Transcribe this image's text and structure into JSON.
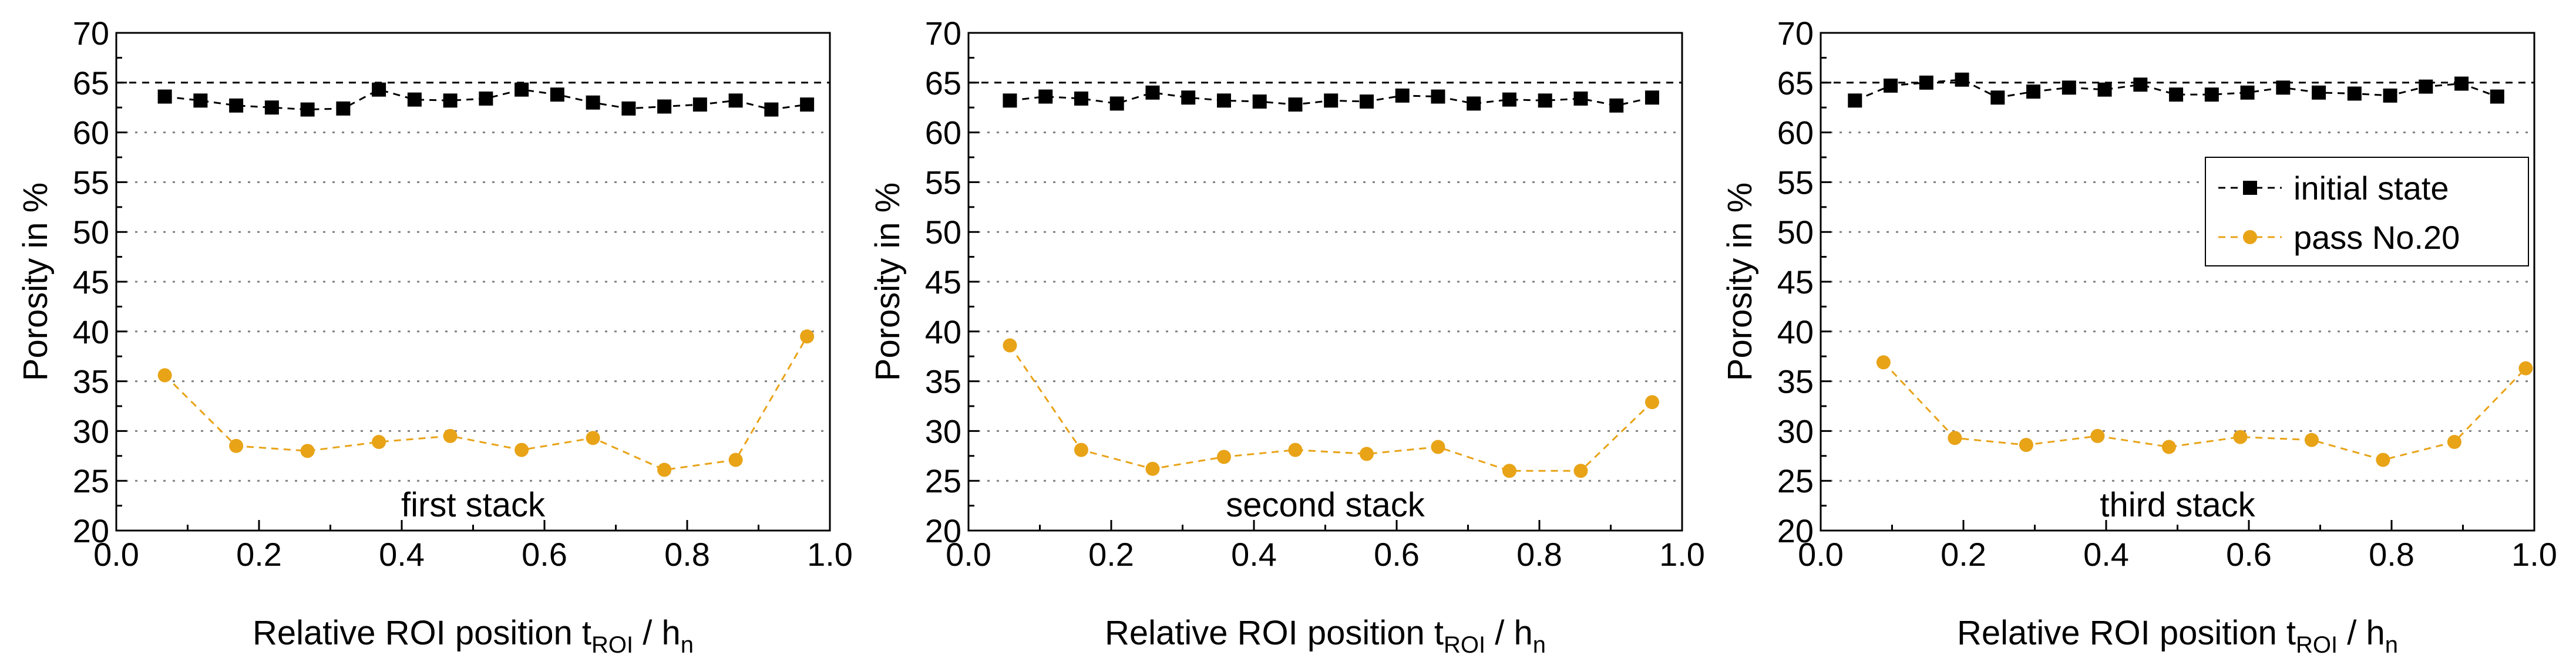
{
  "chart_data": [
    {
      "type": "line",
      "annotation": "first stack",
      "xlabel": "Relative ROI position",
      "xlabel_sub": "ROI",
      "xlabel_tail": " / h",
      "xlabel_tail_sub": "n",
      "ylabel": "Porosity in %",
      "xlim": [
        0.0,
        1.0
      ],
      "ylim": [
        20,
        70
      ],
      "xticks": [
        "0.0",
        "0.2",
        "0.4",
        "0.6",
        "0.8",
        "1.0"
      ],
      "yticks": [
        "20",
        "25",
        "30",
        "35",
        "40",
        "45",
        "50",
        "55",
        "60",
        "65",
        "70"
      ],
      "grid": "horizontal dotted",
      "reference_line": 65,
      "series": [
        {
          "name": "initial state",
          "color": "#000000",
          "marker": "square",
          "x": [
            0.068,
            0.118,
            0.168,
            0.218,
            0.268,
            0.318,
            0.368,
            0.418,
            0.468,
            0.518,
            0.568,
            0.618,
            0.668,
            0.718,
            0.768,
            0.818,
            0.868,
            0.918,
            0.968
          ],
          "y": [
            63.6,
            63.2,
            62.7,
            62.5,
            62.3,
            62.4,
            64.3,
            63.3,
            63.2,
            63.4,
            64.3,
            63.8,
            63.0,
            62.4,
            62.6,
            62.8,
            63.2,
            62.3,
            62.8
          ]
        },
        {
          "name": "pass No.20",
          "color": "#E8A317",
          "marker": "circle",
          "x": [
            0.068,
            0.168,
            0.268,
            0.368,
            0.468,
            0.568,
            0.668,
            0.768,
            0.868,
            0.968
          ],
          "y": [
            35.6,
            28.5,
            28.0,
            28.9,
            29.5,
            28.1,
            29.3,
            26.1,
            27.1,
            39.5
          ]
        }
      ]
    },
    {
      "type": "line",
      "annotation": "second stack",
      "xlabel": "Relative ROI position",
      "xlabel_sub": "ROI",
      "xlabel_tail": " / h",
      "xlabel_tail_sub": "n",
      "ylabel": "Porosity in %",
      "xlim": [
        0.0,
        1.0
      ],
      "ylim": [
        20,
        70
      ],
      "xticks": [
        "0.0",
        "0.2",
        "0.4",
        "0.6",
        "0.8",
        "1.0"
      ],
      "yticks": [
        "20",
        "25",
        "30",
        "35",
        "40",
        "45",
        "50",
        "55",
        "60",
        "65",
        "70"
      ],
      "grid": "horizontal dotted",
      "reference_line": 65,
      "series": [
        {
          "name": "initial state",
          "color": "#000000",
          "marker": "square",
          "x": [
            0.058,
            0.108,
            0.158,
            0.208,
            0.258,
            0.308,
            0.358,
            0.408,
            0.458,
            0.508,
            0.558,
            0.608,
            0.658,
            0.708,
            0.758,
            0.808,
            0.858,
            0.908,
            0.958
          ],
          "y": [
            63.2,
            63.6,
            63.4,
            62.9,
            64.0,
            63.5,
            63.2,
            63.1,
            62.8,
            63.2,
            63.1,
            63.7,
            63.6,
            62.9,
            63.3,
            63.2,
            63.4,
            62.7,
            63.5
          ]
        },
        {
          "name": "pass No.20",
          "color": "#E8A317",
          "marker": "circle",
          "x": [
            0.058,
            0.158,
            0.258,
            0.358,
            0.458,
            0.558,
            0.658,
            0.758,
            0.858,
            0.958
          ],
          "y": [
            38.6,
            28.1,
            26.2,
            27.4,
            28.1,
            27.7,
            28.4,
            26.0,
            26.0,
            32.9
          ]
        }
      ]
    },
    {
      "type": "line",
      "annotation": "third stack",
      "xlabel": "Relative ROI position",
      "xlabel_sub": "ROI",
      "xlabel_tail": " / h",
      "xlabel_tail_sub": "n",
      "ylabel": "Porosity in %",
      "xlim": [
        0.0,
        1.0
      ],
      "ylim": [
        20,
        70
      ],
      "xticks": [
        "0.0",
        "0.2",
        "0.4",
        "0.6",
        "0.8",
        "1.0"
      ],
      "yticks": [
        "20",
        "25",
        "30",
        "35",
        "40",
        "45",
        "50",
        "55",
        "60",
        "65",
        "70"
      ],
      "grid": "horizontal dotted",
      "reference_line": 65,
      "legend": "right-upper",
      "series": [
        {
          "name": "initial state",
          "color": "#000000",
          "marker": "square",
          "x": [
            0.048,
            0.098,
            0.148,
            0.198,
            0.248,
            0.298,
            0.348,
            0.398,
            0.448,
            0.498,
            0.548,
            0.598,
            0.648,
            0.698,
            0.748,
            0.798,
            0.848,
            0.898,
            0.948
          ],
          "y": [
            63.2,
            64.7,
            65.0,
            65.3,
            63.5,
            64.1,
            64.5,
            64.3,
            64.8,
            63.8,
            63.8,
            64.0,
            64.5,
            64.0,
            63.9,
            63.7,
            64.6,
            64.9,
            63.6
          ]
        },
        {
          "name": "pass No.20",
          "color": "#E8A317",
          "marker": "circle",
          "x": [
            0.088,
            0.188,
            0.288,
            0.388,
            0.488,
            0.588,
            0.688,
            0.788,
            0.888,
            0.988
          ],
          "y": [
            36.9,
            29.3,
            28.6,
            29.5,
            28.4,
            29.4,
            29.1,
            27.1,
            28.9,
            36.3
          ]
        }
      ]
    }
  ]
}
